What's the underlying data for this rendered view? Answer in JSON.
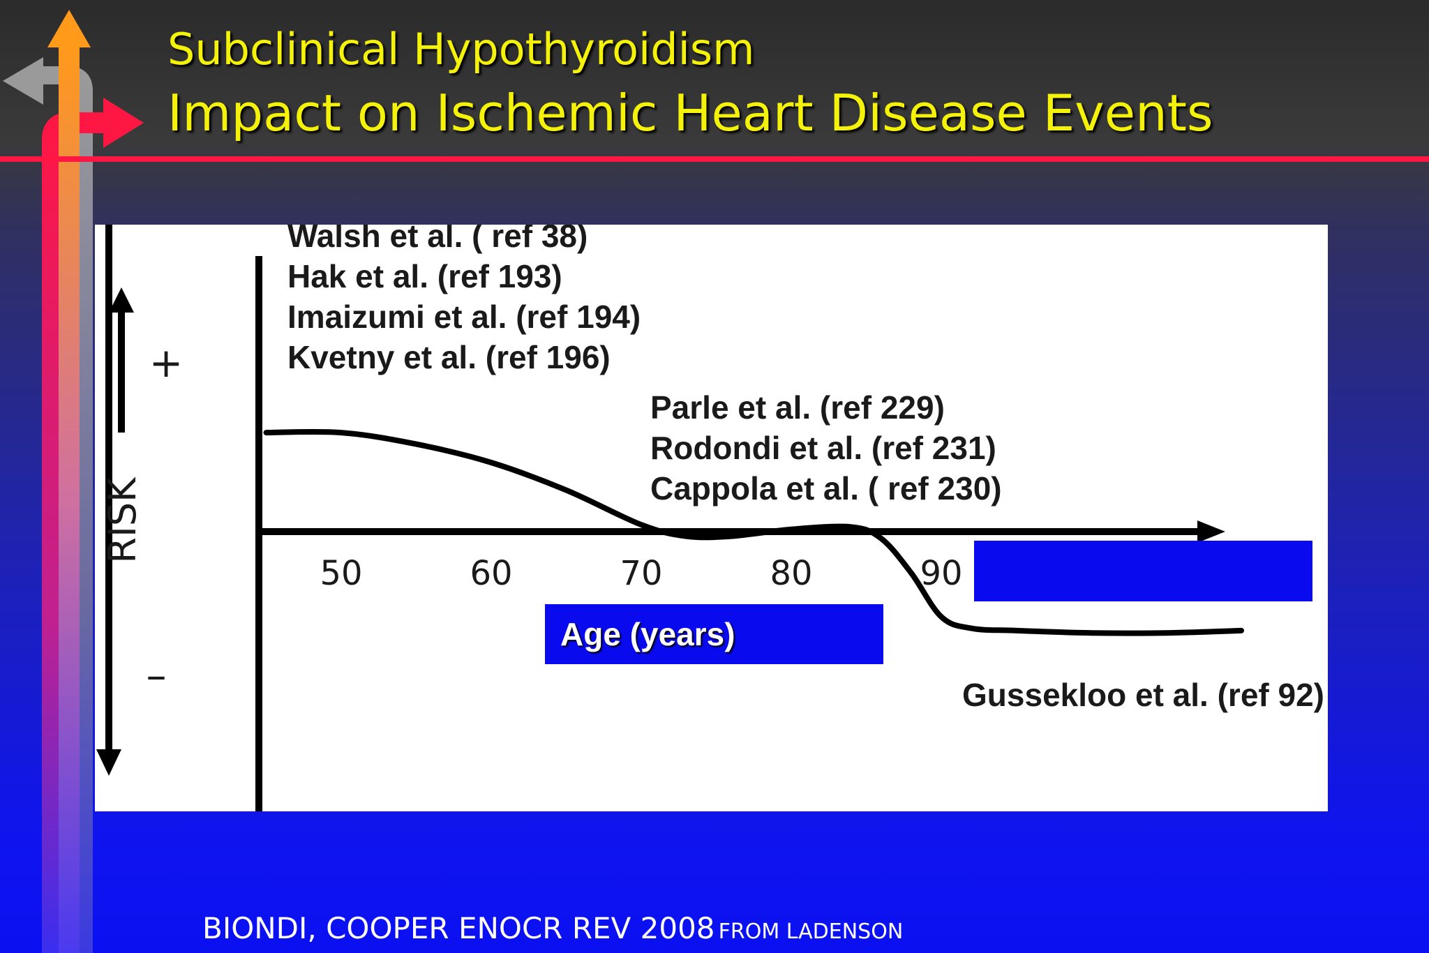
{
  "slide": {
    "title_line1": "Subclinical Hypothyroidism",
    "title_line2": "Impact on Ischemic Heart Disease Events",
    "footer_main": "BIONDI, COOPER ENOCR REV 2008",
    "footer_small": "FROM LADENSON",
    "colors": {
      "title": "#f4f20a",
      "accent_line": "#ff1744",
      "box": "#0a0aee"
    }
  },
  "chart_data": {
    "type": "line",
    "xlabel": "Age (years)",
    "ylabel": "RISK",
    "x_ticks": [
      "50",
      "60",
      "70",
      "80",
      "90"
    ],
    "y_markers": {
      "plus": "+",
      "minus": "–"
    },
    "groups_above": [
      "Walsh et al. ( ref 38)",
      "Hak et al. (ref 193)",
      "Imaizumi et al. (ref 194)",
      "Kvetny et al. (ref 196)"
    ],
    "groups_middle": [
      "Parle et al. (ref 229)",
      "Rodondi et al.  (ref 231)",
      "Cappola et al. ( ref 230)"
    ],
    "groups_below": [
      "Gussekloo et al. (ref 92)"
    ],
    "series": [
      {
        "x": [
          45,
          50,
          55,
          60,
          65,
          70,
          73,
          76,
          80,
          84,
          86,
          88,
          90,
          92,
          95,
          100,
          105,
          110
        ],
        "y": [
          0.43,
          0.43,
          0.38,
          0.3,
          0.18,
          0.03,
          -0.02,
          -0.02,
          0.01,
          0.02,
          -0.03,
          -0.18,
          -0.37,
          -0.42,
          -0.43,
          -0.44,
          -0.44,
          -0.43
        ]
      }
    ],
    "xlim": [
      40,
      110
    ],
    "ylim": [
      -1,
      1
    ]
  }
}
